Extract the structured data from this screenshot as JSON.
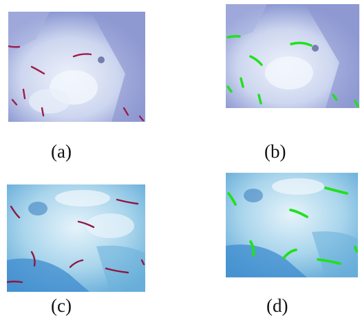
{
  "figure": {
    "panels": [
      {
        "id": "a",
        "caption": "(a)",
        "type": "microscopy-original",
        "stain_color": "#9c1d4a"
      },
      {
        "id": "b",
        "caption": "(b)",
        "type": "microscopy-segmented",
        "highlight_color": "#22e01e"
      },
      {
        "id": "c",
        "caption": "(c)",
        "type": "microscopy-original",
        "stain_color": "#8e1740"
      },
      {
        "id": "d",
        "caption": "(d)",
        "type": "microscopy-segmented",
        "highlight_color": "#22e01e"
      }
    ]
  }
}
